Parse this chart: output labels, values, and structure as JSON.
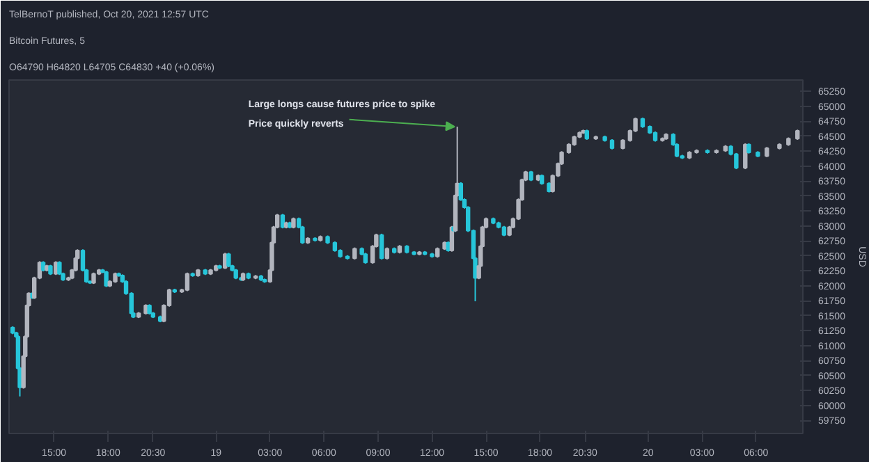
{
  "chart_data": {
    "type": "candlestick",
    "title": "Bitcoin Futures, 5",
    "subtitle": "O64790 H64820 L64705 C64830 +40 (+0.06%)",
    "ylabel": "USD",
    "annotations": [
      "TelBernoT published, Oct 20, 2021 12:57 UTC",
      {
        "text": "Large longs cause futures price to spike",
        "x": "2021-10-19T13:24",
        "y": 64660
      },
      {
        "text": "Price quickly reverts",
        "x": "2021-10-19T13:24",
        "y": 64660
      }
    ],
    "x": [
      "2021-10-18T12:42",
      "2021-10-18T12:54",
      "2021-10-18T13:00",
      "2021-10-18T13:06",
      "2021-10-18T13:18",
      "2021-10-18T13:24",
      "2021-10-18T13:30",
      "2021-10-18T13:36",
      "2021-10-18T13:48",
      "2021-10-18T13:54",
      "2021-10-18T14:12",
      "2021-10-18T14:24",
      "2021-10-18T14:36",
      "2021-10-18T14:48",
      "2021-10-18T15:06",
      "2021-10-18T15:18",
      "2021-10-18T15:30",
      "2021-10-18T15:48",
      "2021-10-18T16:00",
      "2021-10-18T16:12",
      "2021-10-18T16:18",
      "2021-10-18T16:36",
      "2021-10-18T16:48",
      "2021-10-18T17:00",
      "2021-10-18T17:12",
      "2021-10-18T17:30",
      "2021-10-18T17:42",
      "2021-10-18T17:54",
      "2021-10-18T18:06",
      "2021-10-18T18:24",
      "2021-10-18T18:36",
      "2021-10-18T18:48",
      "2021-10-18T19:00",
      "2021-10-18T19:18",
      "2021-10-18T19:24",
      "2021-10-18T19:42",
      "2021-10-18T20:06",
      "2021-10-18T20:18",
      "2021-10-18T20:30",
      "2021-10-18T20:54",
      "2021-10-18T21:06",
      "2021-10-18T21:24",
      "2021-10-18T21:42",
      "2021-10-18T22:06",
      "2021-10-18T22:24",
      "2021-10-18T22:42",
      "2021-10-18T23:00",
      "2021-10-18T23:24",
      "2021-10-18T23:42",
      "2021-10-19T00:00",
      "2021-10-19T00:12",
      "2021-10-19T00:30",
      "2021-10-19T00:42",
      "2021-10-19T00:54",
      "2021-10-19T01:06",
      "2021-10-19T01:24",
      "2021-10-19T01:30",
      "2021-10-19T01:48",
      "2021-10-19T02:12",
      "2021-10-19T02:30",
      "2021-10-19T02:42",
      "2021-10-19T03:00",
      "2021-10-19T03:06",
      "2021-10-19T03:12",
      "2021-10-19T03:24",
      "2021-10-19T03:42",
      "2021-10-19T03:54",
      "2021-10-19T04:06",
      "2021-10-19T04:18",
      "2021-10-19T04:36",
      "2021-10-19T04:48",
      "2021-10-19T05:06",
      "2021-10-19T05:30",
      "2021-10-19T05:48",
      "2021-10-19T06:12",
      "2021-10-19T06:36",
      "2021-10-19T06:54",
      "2021-10-19T07:18",
      "2021-10-19T07:42",
      "2021-10-19T08:06",
      "2021-10-19T08:18",
      "2021-10-19T08:42",
      "2021-10-19T08:54",
      "2021-10-19T09:12",
      "2021-10-19T09:30",
      "2021-10-19T09:54",
      "2021-10-19T10:12",
      "2021-10-19T10:36",
      "2021-10-19T11:00",
      "2021-10-19T11:18",
      "2021-10-19T11:36",
      "2021-10-19T12:00",
      "2021-10-19T12:18",
      "2021-10-19T12:42",
      "2021-10-19T12:54",
      "2021-10-19T13:06",
      "2021-10-19T13:12",
      "2021-10-19T13:18",
      "2021-10-19T13:24",
      "2021-10-19T13:36",
      "2021-10-19T13:48",
      "2021-10-19T14:00",
      "2021-10-19T14:18",
      "2021-10-19T14:24",
      "2021-10-19T14:36",
      "2021-10-19T14:42",
      "2021-10-19T14:48",
      "2021-10-19T15:00",
      "2021-10-19T15:24",
      "2021-10-19T15:42",
      "2021-10-19T16:00",
      "2021-10-19T16:18",
      "2021-10-19T16:30",
      "2021-10-19T16:48",
      "2021-10-19T17:00",
      "2021-10-19T17:12",
      "2021-10-19T17:30",
      "2021-10-19T17:54",
      "2021-10-19T18:06",
      "2021-10-19T18:30",
      "2021-10-19T18:42",
      "2021-10-19T19:00",
      "2021-10-19T19:12",
      "2021-10-19T19:36",
      "2021-10-19T19:54",
      "2021-10-19T20:12",
      "2021-10-19T20:24",
      "2021-10-19T20:36",
      "2021-10-19T21:06",
      "2021-10-19T21:36",
      "2021-10-19T22:00",
      "2021-10-19T22:36",
      "2021-10-19T23:00",
      "2021-10-19T23:18",
      "2021-10-19T23:42",
      "2021-10-20T00:06",
      "2021-10-20T00:24",
      "2021-10-20T00:48",
      "2021-10-20T01:00",
      "2021-10-20T01:24",
      "2021-10-20T01:36",
      "2021-10-20T01:54",
      "2021-10-20T02:18",
      "2021-10-20T02:42",
      "2021-10-20T03:18",
      "2021-10-20T03:48",
      "2021-10-20T04:18",
      "2021-10-20T04:36",
      "2021-10-20T04:54",
      "2021-10-20T05:24",
      "2021-10-20T05:36",
      "2021-10-20T06:06",
      "2021-10-20T06:36",
      "2021-10-20T07:18",
      "2021-10-20T07:48",
      "2021-10-20T08:18"
    ],
    "ohlc": [
      [
        61300,
        61320,
        61190,
        61210
      ],
      [
        61210,
        61230,
        61130,
        61150
      ],
      [
        61150,
        61170,
        60600,
        60620
      ],
      [
        60620,
        60640,
        60150,
        60300
      ],
      [
        60300,
        60840,
        60280,
        60820
      ],
      [
        60820,
        61170,
        60800,
        61150
      ],
      [
        61150,
        61690,
        61130,
        61670
      ],
      [
        61670,
        61890,
        61650,
        61870
      ],
      [
        61870,
        61890,
        61780,
        61800
      ],
      [
        61800,
        62150,
        61780,
        62130
      ],
      [
        62130,
        62410,
        62110,
        62390
      ],
      [
        62390,
        62410,
        62240,
        62260
      ],
      [
        62260,
        62350,
        62240,
        62330
      ],
      [
        62330,
        62350,
        62180,
        62200
      ],
      [
        62200,
        62410,
        62180,
        62390
      ],
      [
        62390,
        62410,
        62180,
        62200
      ],
      [
        62200,
        62220,
        62080,
        62100
      ],
      [
        62100,
        62150,
        62080,
        62130
      ],
      [
        62130,
        62280,
        62110,
        62260
      ],
      [
        62260,
        62480,
        62240,
        62460
      ],
      [
        62460,
        62610,
        62440,
        62590
      ],
      [
        62590,
        62610,
        62240,
        62260
      ],
      [
        62260,
        62280,
        62050,
        62070
      ],
      [
        62070,
        62090,
        62030,
        62050
      ],
      [
        62050,
        62220,
        62030,
        62200
      ],
      [
        62200,
        62280,
        62180,
        62260
      ],
      [
        62260,
        62280,
        62210,
        62230
      ],
      [
        62230,
        62250,
        61980,
        62000
      ],
      [
        62000,
        62090,
        61980,
        62070
      ],
      [
        62070,
        62220,
        62050,
        62200
      ],
      [
        62200,
        62220,
        62150,
        62170
      ],
      [
        62170,
        62190,
        62050,
        62070
      ],
      [
        62070,
        62090,
        61850,
        61870
      ],
      [
        61870,
        61890,
        61520,
        61540
      ],
      [
        61540,
        61560,
        61460,
        61480
      ],
      [
        61480,
        61560,
        61460,
        61540
      ],
      [
        61540,
        61690,
        61520,
        61670
      ],
      [
        61670,
        61690,
        61520,
        61540
      ],
      [
        61540,
        61560,
        61460,
        61480
      ],
      [
        61480,
        61500,
        61390,
        61410
      ],
      [
        61410,
        61690,
        61390,
        61670
      ],
      [
        61670,
        61950,
        61650,
        61930
      ],
      [
        61930,
        61950,
        61880,
        61900
      ],
      [
        61900,
        61950,
        61880,
        61930
      ],
      [
        61930,
        62220,
        61910,
        62200
      ],
      [
        62200,
        62220,
        62150,
        62170
      ],
      [
        62170,
        62280,
        62150,
        62260
      ],
      [
        62260,
        62280,
        62180,
        62200
      ],
      [
        62200,
        62280,
        62180,
        62260
      ],
      [
        62260,
        62350,
        62240,
        62330
      ],
      [
        62330,
        62350,
        62280,
        62300
      ],
      [
        62300,
        62550,
        62280,
        62530
      ],
      [
        62530,
        62550,
        62310,
        62330
      ],
      [
        62330,
        62350,
        62240,
        62260
      ],
      [
        62260,
        62280,
        62110,
        62130
      ],
      [
        62130,
        62150,
        62080,
        62100
      ],
      [
        62100,
        62220,
        62080,
        62200
      ],
      [
        62200,
        62220,
        62110,
        62130
      ],
      [
        62130,
        62180,
        62110,
        62160
      ],
      [
        62160,
        62180,
        62080,
        62100
      ],
      [
        62100,
        62120,
        62050,
        62070
      ],
      [
        62070,
        62280,
        62050,
        62260
      ],
      [
        62260,
        62740,
        62240,
        62720
      ],
      [
        62720,
        63000,
        62700,
        62980
      ],
      [
        62980,
        63200,
        62960,
        63180
      ],
      [
        63180,
        63200,
        62960,
        62980
      ],
      [
        62980,
        63070,
        62960,
        63050
      ],
      [
        63050,
        63070,
        62960,
        62980
      ],
      [
        62980,
        63140,
        62960,
        63120
      ],
      [
        63120,
        63140,
        62960,
        62980
      ],
      [
        62980,
        63000,
        62700,
        62720
      ],
      [
        62720,
        62810,
        62700,
        62790
      ],
      [
        62790,
        62810,
        62740,
        62760
      ],
      [
        62760,
        62840,
        62740,
        62820
      ],
      [
        62820,
        62840,
        62700,
        62720
      ],
      [
        62720,
        62740,
        62570,
        62590
      ],
      [
        62590,
        62610,
        62470,
        62490
      ],
      [
        62490,
        62510,
        62440,
        62460
      ],
      [
        62460,
        62640,
        62440,
        62620
      ],
      [
        62620,
        62640,
        62510,
        62530
      ],
      [
        62530,
        62550,
        62370,
        62390
      ],
      [
        62390,
        62680,
        62370,
        62660
      ],
      [
        62660,
        62870,
        62640,
        62850
      ],
      [
        62850,
        62870,
        62440,
        62460
      ],
      [
        62460,
        62640,
        62440,
        62620
      ],
      [
        62620,
        62640,
        62540,
        62560
      ],
      [
        62560,
        62680,
        62540,
        62660
      ],
      [
        62660,
        62680,
        62540,
        62560
      ],
      [
        62560,
        62580,
        62510,
        62530
      ],
      [
        62530,
        62580,
        62510,
        62560
      ],
      [
        62560,
        62580,
        62510,
        62530
      ],
      [
        62530,
        62550,
        62470,
        62490
      ],
      [
        62490,
        62640,
        62470,
        62620
      ],
      [
        62620,
        62740,
        62600,
        62720
      ],
      [
        62720,
        62740,
        62570,
        62590
      ],
      [
        62590,
        63000,
        62570,
        62980
      ],
      [
        62980,
        63000,
        62900,
        62920
      ],
      [
        62920,
        63530,
        62900,
        63510
      ],
      [
        63510,
        64660,
        63490,
        63710
      ],
      [
        63710,
        63730,
        63420,
        63440
      ],
      [
        63440,
        63460,
        63290,
        63310
      ],
      [
        63310,
        63330,
        62900,
        62920
      ],
      [
        62920,
        62940,
        62440,
        62460
      ],
      [
        62460,
        62480,
        61740,
        62130
      ],
      [
        62130,
        62350,
        62110,
        62330
      ],
      [
        62330,
        62680,
        62310,
        62660
      ],
      [
        62660,
        63000,
        62640,
        62980
      ],
      [
        62980,
        63140,
        62960,
        63120
      ],
      [
        63120,
        63140,
        63030,
        63050
      ],
      [
        63050,
        63070,
        62960,
        62980
      ],
      [
        62980,
        63000,
        62830,
        62850
      ],
      [
        62850,
        63000,
        62830,
        62980
      ],
      [
        62980,
        63140,
        62960,
        63120
      ],
      [
        63120,
        63460,
        63100,
        63440
      ],
      [
        63440,
        63790,
        63420,
        63770
      ],
      [
        63770,
        63920,
        63750,
        63900
      ],
      [
        63900,
        63920,
        63750,
        63770
      ],
      [
        63770,
        63860,
        63750,
        63840
      ],
      [
        63840,
        63860,
        63690,
        63710
      ],
      [
        63710,
        63730,
        63560,
        63580
      ],
      [
        63580,
        63860,
        63560,
        63840
      ],
      [
        63840,
        64060,
        63820,
        64040
      ],
      [
        64040,
        64250,
        64020,
        64230
      ],
      [
        64230,
        64380,
        64210,
        64360
      ],
      [
        64360,
        64510,
        64340,
        64490
      ],
      [
        64490,
        64580,
        64470,
        64560
      ],
      [
        64560,
        64610,
        64540,
        64590
      ],
      [
        64590,
        64610,
        64440,
        64460
      ],
      [
        64460,
        64510,
        64440,
        64490
      ],
      [
        64490,
        64510,
        64410,
        64430
      ],
      [
        64430,
        64450,
        64280,
        64300
      ],
      [
        64300,
        64450,
        64280,
        64430
      ],
      [
        64430,
        64610,
        64410,
        64590
      ],
      [
        64590,
        64810,
        64570,
        64790
      ],
      [
        64790,
        64810,
        64640,
        64660
      ],
      [
        64660,
        64680,
        64540,
        64560
      ],
      [
        64560,
        64580,
        64410,
        64430
      ],
      [
        64430,
        64480,
        64410,
        64460
      ],
      [
        64460,
        64550,
        64440,
        64530
      ],
      [
        64530,
        64550,
        64340,
        64360
      ],
      [
        64360,
        64380,
        64150,
        64170
      ],
      [
        64170,
        64190,
        64120,
        64140
      ],
      [
        64140,
        64250,
        64120,
        64230
      ],
      [
        64230,
        64280,
        64210,
        64260
      ],
      [
        64260,
        64280,
        64210,
        64230
      ],
      [
        64230,
        64280,
        64210,
        64260
      ],
      [
        64260,
        64350,
        64240,
        64330
      ],
      [
        64330,
        64350,
        64180,
        64200
      ],
      [
        64200,
        64220,
        63950,
        63970
      ],
      [
        63970,
        64380,
        63950,
        64360
      ],
      [
        64360,
        64380,
        64210,
        64230
      ],
      [
        64230,
        64250,
        64150,
        64170
      ],
      [
        64170,
        64320,
        64150,
        64300
      ],
      [
        64300,
        64380,
        64280,
        64360
      ],
      [
        64360,
        64480,
        64340,
        64460
      ],
      [
        64460,
        64610,
        64440,
        64590
      ]
    ],
    "colors": [
      "#26c6da",
      "#26c6da",
      "#26c6da",
      "#26c6da",
      "#b2b5be",
      "#b2b5be",
      "#b2b5be",
      "#b2b5be",
      "#26c6da",
      "#b2b5be",
      "#b2b5be",
      "#26c6da",
      "#b2b5be",
      "#26c6da",
      "#b2b5be",
      "#26c6da",
      "#26c6da",
      "#b2b5be",
      "#b2b5be",
      "#b2b5be",
      "#b2b5be",
      "#26c6da",
      "#26c6da",
      "#26c6da",
      "#b2b5be",
      "#b2b5be",
      "#26c6da",
      "#26c6da",
      "#b2b5be",
      "#b2b5be",
      "#26c6da",
      "#26c6da",
      "#26c6da",
      "#26c6da",
      "#26c6da",
      "#b2b5be",
      "#b2b5be",
      "#26c6da",
      "#26c6da",
      "#26c6da",
      "#b2b5be",
      "#b2b5be",
      "#26c6da",
      "#b2b5be",
      "#b2b5be",
      "#26c6da",
      "#b2b5be",
      "#26c6da",
      "#b2b5be",
      "#b2b5be",
      "#26c6da",
      "#b2b5be",
      "#26c6da",
      "#26c6da",
      "#26c6da",
      "#26c6da",
      "#b2b5be",
      "#26c6da",
      "#b2b5be",
      "#26c6da",
      "#26c6da",
      "#b2b5be",
      "#b2b5be",
      "#b2b5be",
      "#b2b5be",
      "#26c6da",
      "#b2b5be",
      "#26c6da",
      "#b2b5be",
      "#26c6da",
      "#26c6da",
      "#b2b5be",
      "#26c6da",
      "#b2b5be",
      "#26c6da",
      "#26c6da",
      "#26c6da",
      "#26c6da",
      "#b2b5be",
      "#26c6da",
      "#26c6da",
      "#b2b5be",
      "#b2b5be",
      "#26c6da",
      "#b2b5be",
      "#26c6da",
      "#b2b5be",
      "#26c6da",
      "#26c6da",
      "#b2b5be",
      "#26c6da",
      "#26c6da",
      "#b2b5be",
      "#b2b5be",
      "#26c6da",
      "#b2b5be",
      "#26c6da",
      "#b2b5be",
      "#b2b5be",
      "#26c6da",
      "#26c6da",
      "#26c6da",
      "#26c6da",
      "#26c6da",
      "#b2b5be",
      "#b2b5be",
      "#b2b5be",
      "#b2b5be",
      "#26c6da",
      "#26c6da",
      "#26c6da",
      "#b2b5be",
      "#b2b5be",
      "#b2b5be",
      "#b2b5be",
      "#b2b5be",
      "#26c6da",
      "#b2b5be",
      "#26c6da",
      "#26c6da",
      "#b2b5be",
      "#b2b5be",
      "#b2b5be",
      "#b2b5be",
      "#b2b5be",
      "#b2b5be",
      "#b2b5be",
      "#26c6da",
      "#b2b5be",
      "#26c6da",
      "#26c6da",
      "#b2b5be",
      "#b2b5be",
      "#b2b5be",
      "#26c6da",
      "#26c6da",
      "#26c6da",
      "#b2b5be",
      "#b2b5be",
      "#26c6da",
      "#26c6da",
      "#26c6da",
      "#b2b5be",
      "#b2b5be",
      "#26c6da",
      "#b2b5be",
      "#b2b5be",
      "#26c6da",
      "#26c6da",
      "#b2b5be",
      "#26c6da",
      "#26c6da",
      "#b2b5be",
      "#b2b5be",
      "#b2b5be",
      "#b2b5be"
    ],
    "xlim": [
      "2021-10-18T12:30",
      "2021-10-20T08:36"
    ],
    "xticks": [
      {
        "value": "2021-10-18T15:00",
        "label": "15:00"
      },
      {
        "value": "2021-10-18T18:00",
        "label": "18:00"
      },
      {
        "value": "2021-10-18T20:30",
        "label": "20:30"
      },
      {
        "value": "2021-10-19T00:00",
        "label": "19"
      },
      {
        "value": "2021-10-19T03:00",
        "label": "03:00"
      },
      {
        "value": "2021-10-19T06:00",
        "label": "06:00"
      },
      {
        "value": "2021-10-19T09:00",
        "label": "09:00"
      },
      {
        "value": "2021-10-19T12:00",
        "label": "12:00"
      },
      {
        "value": "2021-10-19T15:00",
        "label": "15:00"
      },
      {
        "value": "2021-10-19T18:00",
        "label": "18:00"
      },
      {
        "value": "2021-10-19T20:30",
        "label": "20:30"
      },
      {
        "value": "2021-10-20T00:00",
        "label": "20"
      },
      {
        "value": "2021-10-20T03:00",
        "label": "03:00"
      },
      {
        "value": "2021-10-20T06:00",
        "label": "06:00"
      }
    ],
    "ylim": [
      59530,
      65440
    ],
    "yticks": [
      59750,
      60000,
      60250,
      60500,
      60750,
      61000,
      61250,
      61500,
      61750,
      62000,
      62250,
      62500,
      62750,
      63000,
      63250,
      63500,
      63750,
      64000,
      64250,
      64500,
      64750,
      65000,
      65250
    ],
    "grid": false
  }
}
